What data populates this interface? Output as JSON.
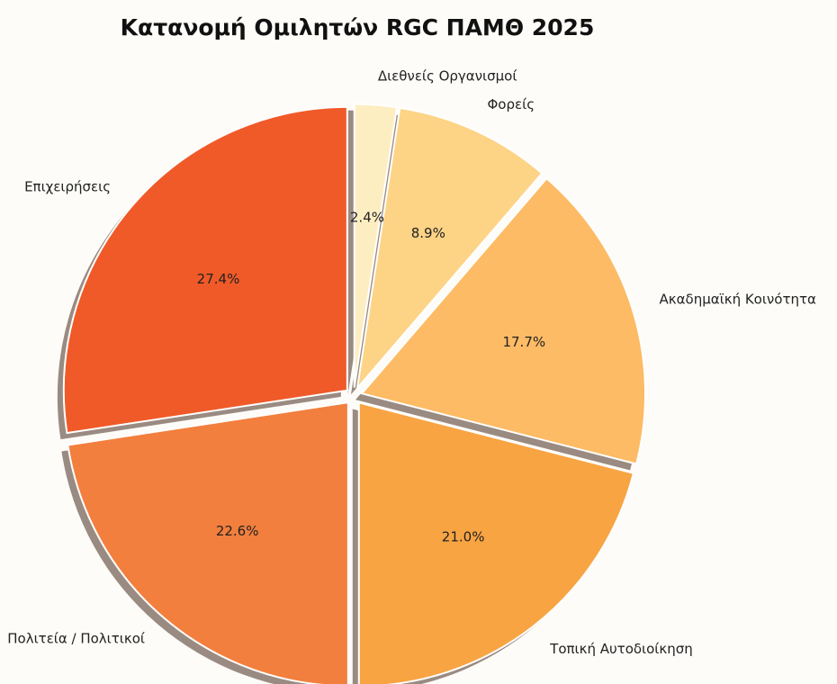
{
  "chart_data": {
    "type": "pie",
    "title": "Κατανομή Ομιλητών RGC ΠΑΜΘ 2025",
    "categories": [
      "Διεθνείς Οργανισμοί",
      "Φορείς",
      "Ακαδημαϊκή Κοινότητα",
      "Τοπική Αυτοδιοίκηση",
      "Πολιτεία / Πολιτικοί",
      "Επιχειρήσεις"
    ],
    "values": [
      2.4,
      8.9,
      17.7,
      21.0,
      22.6,
      27.4
    ],
    "value_labels": [
      "2.4%",
      "8.9%",
      "17.7%",
      "21.0%",
      "22.6%",
      "27.4%"
    ],
    "colors": [
      "#fdeec2",
      "#fdd385",
      "#fdbb65",
      "#f8a443",
      "#f27f3d",
      "#f05a28"
    ],
    "shadow": true
  }
}
